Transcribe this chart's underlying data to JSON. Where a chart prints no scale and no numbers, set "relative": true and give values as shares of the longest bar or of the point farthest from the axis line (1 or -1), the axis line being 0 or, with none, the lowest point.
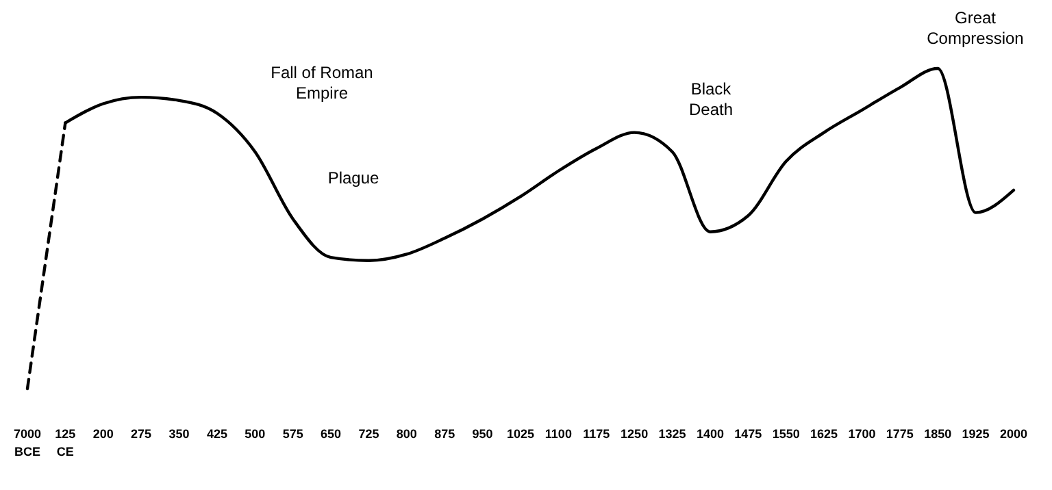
{
  "chart_data": {
    "type": "line",
    "relative": true,
    "categories": [
      "7000 BCE",
      "125 CE",
      "200",
      "275",
      "350",
      "425",
      "500",
      "575",
      "650",
      "725",
      "800",
      "875",
      "950",
      "1025",
      "1100",
      "1175",
      "1250",
      "1325",
      "1400",
      "1475",
      "1550",
      "1625",
      "1700",
      "1775",
      "1850",
      "1925",
      "2000"
    ],
    "series": [
      {
        "color": "#000000",
        "line_style": "dashed",
        "values": [
          0,
          0.83,
          null,
          null,
          null,
          null,
          null,
          null,
          null,
          null,
          null,
          null,
          null,
          null,
          null,
          null,
          null,
          null,
          null,
          null,
          null,
          null,
          null,
          null,
          null,
          null,
          null
        ]
      },
      {
        "color": "#000000",
        "line_style": "solid",
        "values": [
          null,
          0.83,
          0.89,
          0.91,
          0.9,
          0.86,
          0.74,
          0.53,
          0.41,
          0.4,
          0.42,
          0.47,
          0.53,
          0.6,
          0.68,
          0.75,
          0.8,
          0.74,
          0.49,
          0.54,
          0.71,
          0.8,
          0.87,
          0.94,
          1,
          0.55,
          0.62
        ]
      }
    ],
    "annotations": [
      "Fall of Roman Empire",
      "Plague",
      "Black Death",
      "Great Compression"
    ],
    "marker": "none",
    "grid": false
  }
}
